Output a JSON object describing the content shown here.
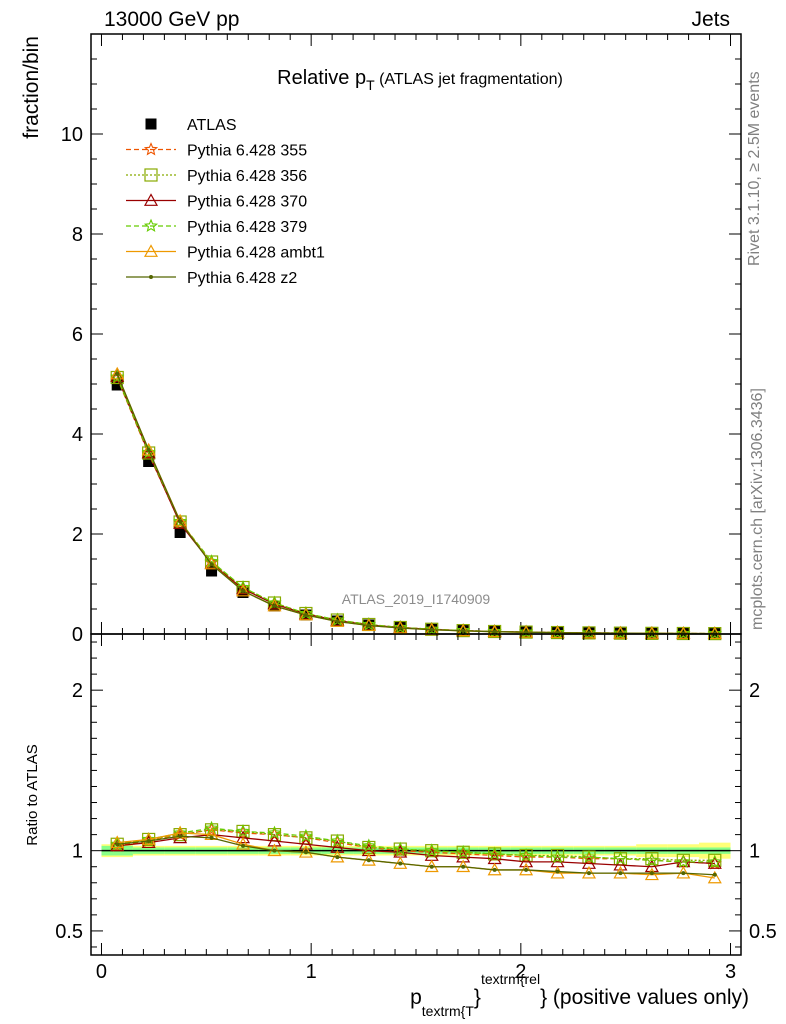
{
  "header": {
    "left": "13000 GeV pp",
    "right": "Jets"
  },
  "side_labels": {
    "top": "Rivet 3.1.10, ≥ 2.5M events",
    "bottom": "mcplots.cern.ch [arXiv:1306.3436]"
  },
  "colors": {
    "data": "#000000",
    "p355": "#ee5500",
    "p356": "#88aa00",
    "p370": "#990000",
    "p379": "#66cc00",
    "ambt1": "#ee9900",
    "z2": "#556600",
    "ref_band1": "#ffff77",
    "ref_band2": "#88ff88"
  },
  "chart_data": [
    {
      "type": "line",
      "title": "Relative p_T (ATLAS jet fragmentation)",
      "title_main": "Relative p",
      "title_sub": "T",
      "title_paren": "(ATLAS jet fragmentation)",
      "ylabel": "fraction/bin",
      "watermark": "ATLAS_2019_I1740909",
      "xlim": [
        -0.05,
        3.05
      ],
      "ylim": [
        0,
        12
      ],
      "yticks": [
        0,
        2,
        4,
        6,
        8,
        10
      ],
      "x": [
        0.075,
        0.225,
        0.375,
        0.525,
        0.675,
        0.825,
        0.975,
        1.125,
        1.275,
        1.425,
        1.575,
        1.725,
        1.875,
        2.025,
        2.175,
        2.325,
        2.475,
        2.625,
        2.775,
        2.925
      ],
      "series": [
        {
          "name": "ATLAS",
          "marker": "square",
          "values": [
            4.98,
            3.45,
            2.03,
            1.26,
            0.83,
            0.56,
            0.38,
            0.26,
            0.18,
            0.13,
            0.095,
            0.07,
            0.052,
            0.04,
            0.03,
            0.023,
            0.018,
            0.014,
            0.011,
            0.009
          ]
        },
        {
          "name": "Pythia 6.428 355",
          "marker": "star",
          "dash": "5,3",
          "values": [
            5.12,
            3.6,
            2.22,
            1.43,
            0.92,
            0.62,
            0.41,
            0.28,
            0.19,
            0.13,
            0.095,
            0.068,
            0.05,
            0.038,
            0.029,
            0.022,
            0.017,
            0.013,
            0.01,
            0.008
          ]
        },
        {
          "name": "Pythia 6.428 356",
          "marker": "opensquare",
          "dash": "2,2",
          "values": [
            5.13,
            3.62,
            2.24,
            1.44,
            0.93,
            0.62,
            0.41,
            0.28,
            0.19,
            0.13,
            0.095,
            0.068,
            0.05,
            0.038,
            0.029,
            0.022,
            0.017,
            0.013,
            0.01,
            0.008
          ]
        },
        {
          "name": "Pythia 6.428 370",
          "marker": "opentriangle",
          "dash": "",
          "values": [
            5.15,
            3.62,
            2.21,
            1.41,
            0.9,
            0.6,
            0.4,
            0.27,
            0.18,
            0.13,
            0.093,
            0.067,
            0.05,
            0.038,
            0.028,
            0.021,
            0.016,
            0.013,
            0.01,
            0.008
          ]
        },
        {
          "name": "Pythia 6.428 379",
          "marker": "star",
          "dash": "5,3",
          "values": [
            5.14,
            3.63,
            2.25,
            1.45,
            0.93,
            0.62,
            0.41,
            0.28,
            0.19,
            0.13,
            0.095,
            0.068,
            0.05,
            0.038,
            0.029,
            0.022,
            0.017,
            0.013,
            0.01,
            0.008
          ]
        },
        {
          "name": "Pythia 6.428 ambt1",
          "marker": "opentriangle",
          "dash": "",
          "values": [
            5.2,
            3.68,
            2.26,
            1.4,
            0.86,
            0.56,
            0.38,
            0.25,
            0.17,
            0.12,
            0.085,
            0.063,
            0.046,
            0.035,
            0.027,
            0.02,
            0.016,
            0.012,
            0.0095,
            0.0075
          ]
        },
        {
          "name": "Pythia 6.428 z2",
          "marker": "dot",
          "dash": "",
          "values": [
            5.2,
            3.68,
            2.25,
            1.39,
            0.86,
            0.56,
            0.38,
            0.25,
            0.17,
            0.12,
            0.085,
            0.063,
            0.046,
            0.035,
            0.027,
            0.02,
            0.016,
            0.012,
            0.0095,
            0.0075
          ]
        }
      ]
    },
    {
      "type": "line",
      "ylabel": "Ratio to ATLAS",
      "xlabel_main": "p",
      "xlabel_sub": "textrm{T",
      "xlabel_sup": "textrm{rel",
      "xlabel_tail": "} (positive values only)",
      "xlabel_brace": "}",
      "xlim": [
        -0.05,
        3.05
      ],
      "ylim": [
        0.35,
        2.35
      ],
      "yticks": [
        0.5,
        1,
        2
      ],
      "ytick_labels": [
        "0.5",
        "1",
        "2"
      ],
      "xticks": [
        0,
        1,
        2,
        3
      ],
      "xtick_labels": [
        "0",
        "1",
        "2",
        "3"
      ],
      "x": [
        0.075,
        0.225,
        0.375,
        0.525,
        0.675,
        0.825,
        0.975,
        1.125,
        1.275,
        1.425,
        1.575,
        1.725,
        1.875,
        2.025,
        2.175,
        2.325,
        2.475,
        2.625,
        2.775,
        2.925
      ],
      "reference_band_outer": [
        0.04,
        0.03,
        0.03,
        0.03,
        0.03,
        0.03,
        0.03,
        0.03,
        0.03,
        0.03,
        0.03,
        0.03,
        0.03,
        0.03,
        0.03,
        0.03,
        0.03,
        0.04,
        0.04,
        0.05
      ],
      "reference_band_inner": [
        0.03,
        0.02,
        0.02,
        0.02,
        0.02,
        0.02,
        0.02,
        0.02,
        0.02,
        0.02,
        0.02,
        0.02,
        0.02,
        0.02,
        0.02,
        0.02,
        0.02,
        0.02,
        0.02,
        0.02
      ],
      "series": [
        {
          "name": "Pythia 6.428 355",
          "values": [
            1.03,
            1.06,
            1.1,
            1.13,
            1.11,
            1.1,
            1.08,
            1.05,
            1.02,
            1.0,
            0.99,
            0.98,
            0.97,
            0.96,
            0.96,
            0.95,
            0.95,
            0.94,
            0.93,
            0.92
          ]
        },
        {
          "name": "Pythia 6.428 356",
          "values": [
            1.04,
            1.07,
            1.1,
            1.13,
            1.12,
            1.1,
            1.08,
            1.06,
            1.02,
            1.01,
            1.0,
            0.99,
            0.98,
            0.97,
            0.97,
            0.96,
            0.95,
            0.95,
            0.94,
            0.94
          ]
        },
        {
          "name": "Pythia 6.428 370",
          "values": [
            1.03,
            1.05,
            1.08,
            1.1,
            1.08,
            1.06,
            1.04,
            1.02,
            1.0,
            0.99,
            0.97,
            0.96,
            0.95,
            0.93,
            0.93,
            0.92,
            0.91,
            0.9,
            0.93,
            0.92
          ]
        },
        {
          "name": "Pythia 6.428 379",
          "values": [
            1.04,
            1.07,
            1.11,
            1.14,
            1.12,
            1.11,
            1.09,
            1.06,
            1.03,
            1.01,
            1.0,
            0.99,
            0.98,
            0.97,
            0.96,
            0.96,
            0.95,
            0.94,
            0.93,
            0.93
          ]
        },
        {
          "name": "Pythia 6.428 ambt1",
          "values": [
            1.05,
            1.07,
            1.11,
            1.1,
            1.04,
            1.0,
            0.99,
            0.96,
            0.94,
            0.92,
            0.9,
            0.9,
            0.88,
            0.88,
            0.86,
            0.86,
            0.86,
            0.85,
            0.86,
            0.83
          ]
        },
        {
          "name": "Pythia 6.428 z2",
          "values": [
            1.04,
            1.06,
            1.09,
            1.08,
            1.03,
            1.0,
            0.99,
            0.96,
            0.94,
            0.92,
            0.9,
            0.9,
            0.88,
            0.88,
            0.87,
            0.86,
            0.86,
            0.86,
            0.86,
            0.85
          ]
        }
      ]
    }
  ]
}
